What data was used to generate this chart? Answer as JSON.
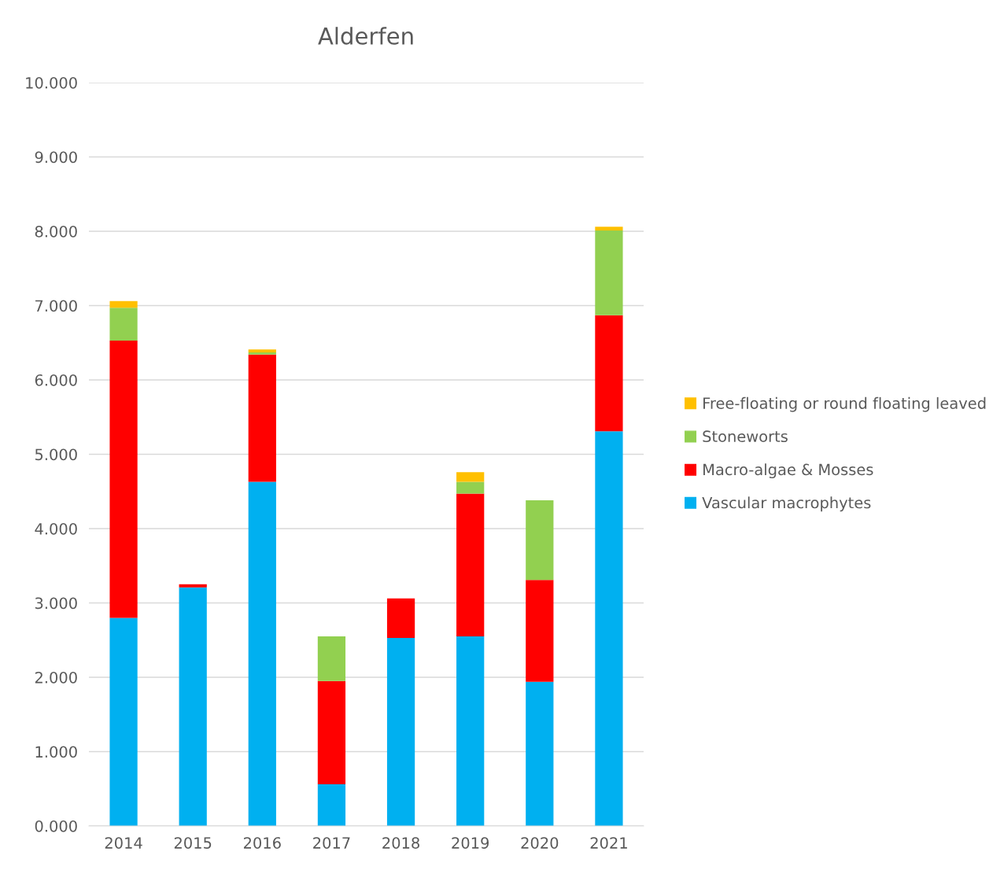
{
  "chart_data": {
    "type": "bar",
    "title": "Alderfen",
    "stacked": true,
    "categories": [
      "2014",
      "2015",
      "2016",
      "2017",
      "2018",
      "2019",
      "2020",
      "2021"
    ],
    "series": [
      {
        "name": "Vascular macrophytes",
        "color": "#00b0f0",
        "values": [
          2.8,
          3.21,
          4.63,
          0.56,
          2.53,
          2.55,
          1.94,
          5.31
        ]
      },
      {
        "name": "Macro-algae & Mosses",
        "color": "#ff0000",
        "values": [
          3.73,
          0.04,
          1.71,
          1.39,
          0.53,
          1.92,
          1.37,
          1.56
        ]
      },
      {
        "name": "Stoneworts",
        "color": "#92d050",
        "values": [
          0.44,
          null,
          0.03,
          0.6,
          null,
          0.16,
          1.07,
          1.14
        ]
      },
      {
        "name": "Free-floating or round floating leaved",
        "color": "#ffc000",
        "values": [
          0.09,
          null,
          0.04,
          null,
          null,
          0.13,
          null,
          0.05
        ]
      }
    ],
    "ylim": [
      0,
      10
    ],
    "yticks": [
      {
        "value": 0,
        "label": "0.000"
      },
      {
        "value": 1,
        "label": "1.000"
      },
      {
        "value": 2,
        "label": "2.000"
      },
      {
        "value": 3,
        "label": "3.000"
      },
      {
        "value": 4,
        "label": "4.000"
      },
      {
        "value": 5,
        "label": "5.000"
      },
      {
        "value": 6,
        "label": "6.000"
      },
      {
        "value": 7,
        "label": "7.000"
      },
      {
        "value": 8,
        "label": "8.000"
      },
      {
        "value": 9,
        "label": "9.000"
      },
      {
        "value": 10,
        "label": "10.000"
      }
    ],
    "grid": "y",
    "legend": "right"
  }
}
